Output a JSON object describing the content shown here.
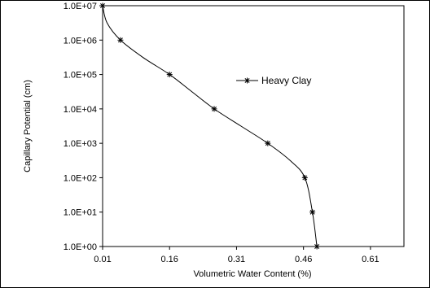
{
  "chart_data": {
    "type": "line",
    "title": "",
    "xlabel": "Volumetric Water Content (%)",
    "ylabel": "Capillary Potential (cm)",
    "xlim": [
      0.01,
      0.685
    ],
    "ylim": [
      1,
      10000000
    ],
    "yscale": "log",
    "grid": false,
    "legend_position": "upper-right",
    "x_tick_values": [
      0.01,
      0.16,
      0.31,
      0.46,
      0.61
    ],
    "x_tick_labels": [
      "0.01",
      "0.16",
      "0.31",
      "0.46",
      "0.61"
    ],
    "y_tick_values": [
      1,
      10,
      100,
      1000,
      10000,
      100000,
      1000000,
      10000000
    ],
    "y_tick_labels": [
      "1.0E+00",
      "1.0E+01",
      "1.0E+02",
      "1.0E+03",
      "1.0E+04",
      "1.0E+05",
      "1.0E+06",
      "1.0E+07"
    ],
    "series": [
      {
        "name": "Heavy Clay",
        "color": "#000000",
        "marker": "asterisk",
        "curve": [
          [
            0.01,
            10000000
          ],
          [
            0.02,
            3160000
          ],
          [
            0.05,
            1000000
          ],
          [
            0.1,
            316000
          ],
          [
            0.16,
            100000
          ],
          [
            0.21,
            31600
          ],
          [
            0.26,
            10000
          ],
          [
            0.32,
            3160
          ],
          [
            0.38,
            1000
          ],
          [
            0.43,
            316
          ],
          [
            0.463,
            100
          ],
          [
            0.48,
            10
          ],
          [
            0.49,
            1
          ]
        ],
        "points": [
          [
            0.01,
            10000000
          ],
          [
            0.05,
            1000000
          ],
          [
            0.16,
            100000
          ],
          [
            0.26,
            10000
          ],
          [
            0.38,
            1000
          ],
          [
            0.463,
            100
          ],
          [
            0.48,
            10
          ],
          [
            0.49,
            1
          ]
        ]
      }
    ]
  }
}
